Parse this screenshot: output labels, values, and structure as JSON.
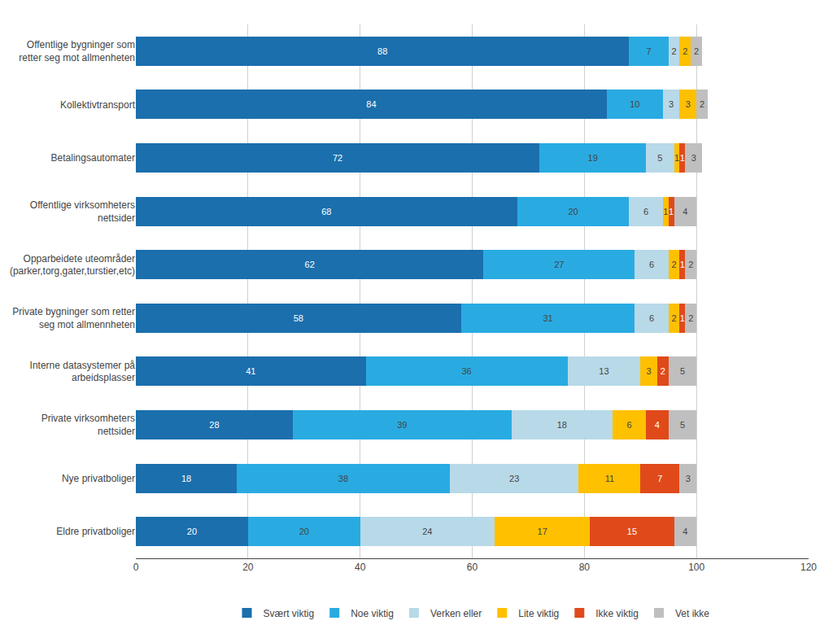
{
  "chart_data": {
    "type": "bar",
    "orientation": "horizontal",
    "stacked": true,
    "data_labels": true,
    "grid": true,
    "legend": "bottom",
    "categories": [
      "Offentlige bygninger som\nretter seg mot allmenheten",
      "Kollektivtransport",
      "Betalingsautomater",
      "Offentlige virksomheters\nnettsider",
      "Opparbeidete uteområder\n(parker,torg,gater,turstier,etc)",
      "Private bygninger som retter\nseg mot allmennheten",
      "Interne datasystemer på\narbeidsplasser",
      "Private virksomheters\nnettsider",
      "Nye privatboliger",
      "Eldre privatboliger"
    ],
    "series": [
      {
        "name": "Svært viktig",
        "color": "#1b6fad",
        "values": [
          88,
          84,
          72,
          68,
          62,
          58,
          41,
          28,
          18,
          20
        ]
      },
      {
        "name": "Noe viktig",
        "color": "#29abe2",
        "values": [
          7,
          10,
          19,
          20,
          27,
          31,
          36,
          39,
          38,
          20
        ]
      },
      {
        "name": "Verken eller",
        "color": "#b8d9e8",
        "values": [
          2,
          3,
          5,
          6,
          6,
          6,
          13,
          18,
          23,
          24
        ]
      },
      {
        "name": "Lite viktig",
        "color": "#ffc000",
        "values": [
          2,
          3,
          1,
          1,
          2,
          2,
          3,
          6,
          11,
          17
        ]
      },
      {
        "name": "Ikke viktig",
        "color": "#e04a1a",
        "values": [
          0,
          0,
          1,
          1,
          1,
          1,
          2,
          4,
          7,
          15
        ]
      },
      {
        "name": "Vet ikke",
        "color": "#bfbfbf",
        "values": [
          2,
          2,
          3,
          4,
          2,
          2,
          5,
          5,
          3,
          4
        ]
      }
    ],
    "xlim": [
      0,
      120
    ],
    "xticks": [
      0,
      20,
      40,
      60,
      80,
      100,
      120
    ]
  }
}
